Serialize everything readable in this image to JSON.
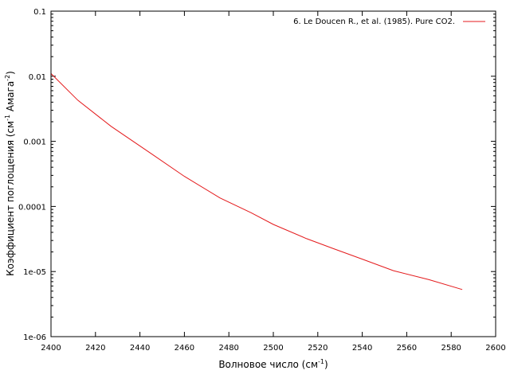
{
  "chart_data": {
    "type": "line",
    "xlabel": "Волновое число (см",
    "xlabel_sup": "-1",
    "xlabel_end": ")",
    "ylabel_parts": [
      "Коэффициент поглощения (см",
      "-1",
      " Амага",
      "-2",
      ")"
    ],
    "xlim": [
      2400,
      2600
    ],
    "ylim": [
      1e-06,
      0.1
    ],
    "yscale": "log",
    "x_ticks": [
      "2400",
      "2420",
      "2440",
      "2460",
      "2480",
      "2500",
      "2520",
      "2540",
      "2560",
      "2580",
      "2600"
    ],
    "y_ticks": [
      "1e-06",
      "1e-05",
      "0.0001",
      "0.001",
      "0.01",
      "0.1"
    ],
    "legend_position": "top-right",
    "grid": false,
    "series": [
      {
        "name": "6. Le Doucen R., et al. (1985). Pure CO2.",
        "color": "#e41a1c",
        "x": [
          2400,
          2412,
          2427,
          2445,
          2460,
          2476,
          2490,
          2500,
          2515,
          2527,
          2540,
          2554,
          2570,
          2585
        ],
        "y": [
          0.011,
          0.0043,
          0.0017,
          0.00065,
          0.00029,
          0.000135,
          8e-05,
          5.3e-05,
          3.2e-05,
          2.25e-05,
          1.55e-05,
          1.03e-05,
          7.5e-06,
          5.3e-06
        ]
      }
    ]
  }
}
